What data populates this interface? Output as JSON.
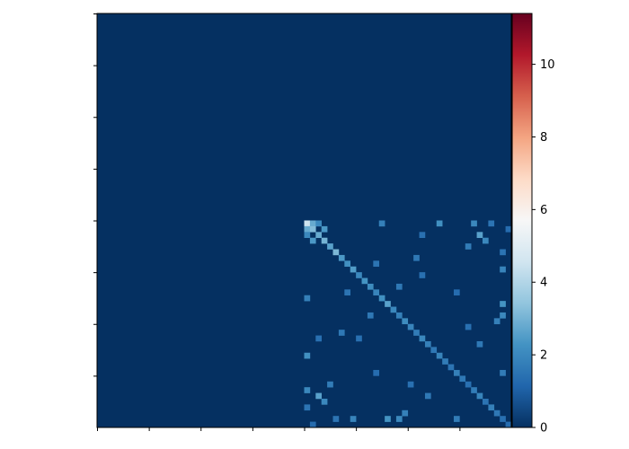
{
  "chart_data": {
    "type": "heatmap",
    "title": "",
    "xlabel": "",
    "ylabel": "",
    "matrix_size": 72,
    "x_tick_count": 8,
    "y_tick_count": 8,
    "x_tick_labels": [],
    "y_tick_labels": [],
    "colormap": "RdBu_r",
    "colormap_stops": [
      "#053061",
      "#2166ac",
      "#4393c3",
      "#92c5de",
      "#d1e5f0",
      "#f7f7f7",
      "#fddbc7",
      "#f4a582",
      "#d6604d",
      "#b2182b",
      "#67001f"
    ],
    "background_value": 0,
    "colorbar": {
      "vmin": 0,
      "vmax": 11.4,
      "ticks": [
        0,
        2,
        4,
        6,
        8,
        10
      ],
      "tick_labels": [
        "0",
        "2",
        "4",
        "6",
        "8",
        "10"
      ]
    },
    "active_block": {
      "row_start": 36,
      "row_end": 72,
      "col_start": 36,
      "col_end": 72
    },
    "diagonal": {
      "start": 36,
      "end": 72,
      "values": [
        4.5,
        3.2,
        2.8,
        3.0,
        2.6,
        3.1,
        2.4,
        2.2,
        2.5,
        2.0,
        2.3,
        2.1,
        1.9,
        2.2,
        2.6,
        2.0,
        1.8,
        2.1,
        1.9,
        1.7,
        2.0,
        1.8,
        1.6,
        1.9,
        1.7,
        1.5,
        1.8,
        1.6,
        1.4,
        1.7,
        1.9,
        1.5,
        1.8,
        1.6,
        1.4,
        1.3
      ]
    },
    "off_diagonal_points": [
      {
        "r": 36,
        "c": 37,
        "v": 2.8
      },
      {
        "r": 37,
        "c": 36,
        "v": 2.8
      },
      {
        "r": 36,
        "c": 38,
        "v": 2.0
      },
      {
        "r": 38,
        "c": 36,
        "v": 2.0
      },
      {
        "r": 37,
        "c": 39,
        "v": 2.4
      },
      {
        "r": 39,
        "c": 37,
        "v": 2.4
      },
      {
        "r": 36,
        "c": 59,
        "v": 2.2
      },
      {
        "r": 59,
        "c": 36,
        "v": 2.2
      },
      {
        "r": 36,
        "c": 65,
        "v": 2.0
      },
      {
        "r": 65,
        "c": 36,
        "v": 2.0
      },
      {
        "r": 38,
        "c": 66,
        "v": 2.6
      },
      {
        "r": 66,
        "c": 38,
        "v": 2.6
      },
      {
        "r": 39,
        "c": 67,
        "v": 2.0
      },
      {
        "r": 67,
        "c": 39,
        "v": 2.0
      },
      {
        "r": 36,
        "c": 49,
        "v": 1.8
      },
      {
        "r": 49,
        "c": 36,
        "v": 1.8
      },
      {
        "r": 40,
        "c": 64,
        "v": 1.7
      },
      {
        "r": 64,
        "c": 40,
        "v": 1.7
      },
      {
        "r": 41,
        "c": 70,
        "v": 1.5
      },
      {
        "r": 70,
        "c": 41,
        "v": 1.5
      },
      {
        "r": 42,
        "c": 55,
        "v": 1.6
      },
      {
        "r": 55,
        "c": 42,
        "v": 1.6
      },
      {
        "r": 44,
        "c": 70,
        "v": 1.9
      },
      {
        "r": 70,
        "c": 44,
        "v": 1.9
      },
      {
        "r": 45,
        "c": 56,
        "v": 1.4
      },
      {
        "r": 56,
        "c": 45,
        "v": 1.4
      },
      {
        "r": 47,
        "c": 52,
        "v": 1.6
      },
      {
        "r": 52,
        "c": 47,
        "v": 1.6
      },
      {
        "r": 50,
        "c": 70,
        "v": 2.3
      },
      {
        "r": 70,
        "c": 50,
        "v": 2.3
      },
      {
        "r": 52,
        "c": 70,
        "v": 2.0
      },
      {
        "r": 70,
        "c": 52,
        "v": 2.0
      },
      {
        "r": 53,
        "c": 69,
        "v": 1.8
      },
      {
        "r": 69,
        "c": 53,
        "v": 1.8
      },
      {
        "r": 36,
        "c": 68,
        "v": 1.5
      },
      {
        "r": 68,
        "c": 36,
        "v": 1.5
      },
      {
        "r": 37,
        "c": 71,
        "v": 1.3
      },
      {
        "r": 71,
        "c": 37,
        "v": 1.3
      },
      {
        "r": 54,
        "c": 64,
        "v": 1.4
      },
      {
        "r": 64,
        "c": 54,
        "v": 1.4
      },
      {
        "r": 57,
        "c": 66,
        "v": 1.6
      },
      {
        "r": 66,
        "c": 57,
        "v": 1.6
      },
      {
        "r": 62,
        "c": 70,
        "v": 1.7
      },
      {
        "r": 70,
        "c": 62,
        "v": 1.7
      },
      {
        "r": 48,
        "c": 62,
        "v": 1.3
      },
      {
        "r": 62,
        "c": 48,
        "v": 1.3
      },
      {
        "r": 43,
        "c": 48,
        "v": 1.5
      },
      {
        "r": 48,
        "c": 43,
        "v": 1.5
      },
      {
        "r": 38,
        "c": 56,
        "v": 1.4
      },
      {
        "r": 56,
        "c": 38,
        "v": 1.4
      }
    ]
  }
}
